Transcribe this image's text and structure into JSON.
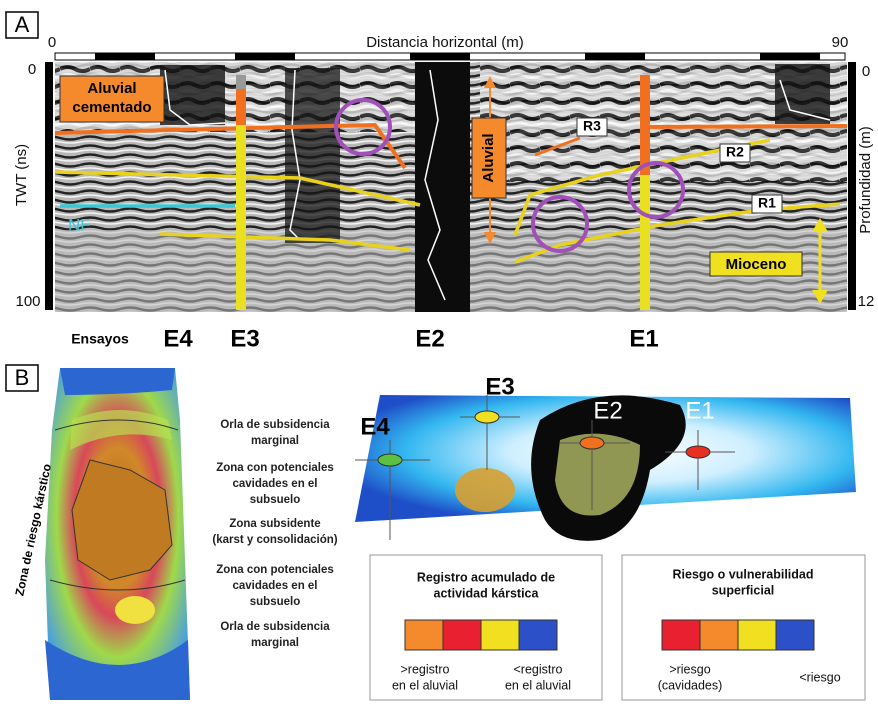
{
  "panel_a": {
    "label": "A",
    "top_axis": {
      "title": "Distancia horizontal (m)",
      "start": "0",
      "end": "90"
    },
    "left_axis": {
      "title": "TWT (ns)",
      "start": "0",
      "end": "100"
    },
    "right_axis": {
      "title": "Profundidad (m)",
      "start": "0",
      "end": "12"
    },
    "annotations": {
      "aluvial_cementado": [
        "Aluvial",
        "cementado"
      ],
      "nf": "NF",
      "aluvial": "Aluvial",
      "r3": "R3",
      "r2": "R2",
      "r1": "R1",
      "mioceno": "Mioceno"
    },
    "tests_label": "Ensayos",
    "tests": [
      "E4",
      "E3",
      "E2",
      "E1"
    ]
  },
  "panel_b": {
    "label": "B",
    "side_label": "Zona de riesgo kárstico",
    "zones": [
      [
        "Orla de subsidencia",
        "marginal"
      ],
      [
        "Zona con potenciales",
        "cavidades en el",
        "subsuelo"
      ],
      [
        "Zona subsidente",
        "(karst y consolidación)"
      ],
      [
        "Zona con potenciales",
        "cavidades en el",
        "subsuelo"
      ],
      [
        "Orla de subsidencia",
        "marginal"
      ]
    ],
    "map_tests": [
      "E4",
      "E3",
      "E2",
      "E1"
    ],
    "legend_karst": {
      "title": [
        "Registro acumulado de",
        "actividad kárstica"
      ],
      "left": [
        ">registro",
        "en el aluvial"
      ],
      "right": [
        "<registro",
        "en el aluvial"
      ]
    },
    "legend_risk": {
      "title": [
        "Riesgo o vulnerabilidad",
        "superficial"
      ],
      "left": [
        ">riesgo",
        "(cavidades)"
      ],
      "right": [
        "<riesgo"
      ]
    }
  }
}
